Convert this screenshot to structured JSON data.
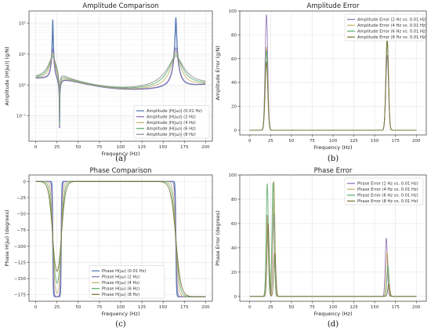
{
  "chart_data": [
    {
      "id": "a",
      "type": "line",
      "panel_label": "(a)",
      "title": "Amplitude Comparison",
      "xlabel": "Frequency (Hz)",
      "ylabel": "Amplitude |H(jω)| (g/N)",
      "yscale": "log",
      "xlim": [
        -8,
        208
      ],
      "ylim": [
        0.015,
        250
      ],
      "xticks": [
        0,
        25,
        50,
        75,
        100,
        125,
        150,
        175,
        200
      ],
      "yticks": [
        {
          "v": 0.1,
          "label": "10⁻¹"
        },
        {
          "v": 1,
          "label": "10⁰"
        },
        {
          "v": 10,
          "label": "10¹"
        },
        {
          "v": 100,
          "label": "10²"
        }
      ],
      "grid": true,
      "legend": "lower-right",
      "model": {
        "kind": "amplitude",
        "peaks": [
          20,
          165
        ],
        "antiresonance": 28
      },
      "series": [
        {
          "name": "Amplitude |H(jω)| (0.01 Hz)",
          "color": "#4c72b0",
          "resolution": 0.01
        },
        {
          "name": "Amplitude |H(jω)| (2 Hz)",
          "color": "#8c6bb1",
          "resolution": 2
        },
        {
          "name": "Amplitude |H(jω)| (4 Hz)",
          "color": "#c4ad66",
          "resolution": 4
        },
        {
          "name": "Amplitude |H(jω)| (6 Hz)",
          "color": "#55a868",
          "resolution": 6
        },
        {
          "name": "Amplitude |H(jω)| (8 Hz)",
          "color": "#8c8c8c",
          "resolution": 8
        }
      ]
    },
    {
      "id": "b",
      "type": "line",
      "panel_label": "(b)",
      "title": "Amplitude Error",
      "xlabel": "Frequency (Hz)",
      "ylabel": "Amplitude Error (g/N)",
      "yscale": "linear",
      "xlim": [
        -12,
        212
      ],
      "ylim": [
        -4,
        100
      ],
      "xticks": [
        0,
        25,
        50,
        75,
        100,
        125,
        150,
        175,
        200
      ],
      "yticks": [
        {
          "v": 0,
          "label": "0"
        },
        {
          "v": 20,
          "label": "20"
        },
        {
          "v": 40,
          "label": "40"
        },
        {
          "v": 60,
          "label": "60"
        },
        {
          "v": 80,
          "label": "80"
        },
        {
          "v": 100,
          "label": "100"
        }
      ],
      "grid": true,
      "legend": "upper-right",
      "series": [
        {
          "name": "Amplitude Error (2 Hz vs. 0.01 Hz)",
          "color": "#8c6bb1",
          "peaks": [
            {
              "x": 20,
              "y": 97
            },
            {
              "x": 165,
              "y": 63
            }
          ]
        },
        {
          "name": "Amplitude Error (4 Hz vs. 0.01 Hz)",
          "color": "#c4ad66",
          "peaks": [
            {
              "x": 20,
              "y": 70
            },
            {
              "x": 165,
              "y": 76
            }
          ]
        },
        {
          "name": "Amplitude Error (6 Hz vs. 0.01 Hz)",
          "color": "#55a868",
          "peaks": [
            {
              "x": 20,
              "y": 67
            },
            {
              "x": 165,
              "y": 74
            }
          ]
        },
        {
          "name": "Amplitude Error (8 Hz vs. 0.01 Hz)",
          "color": "#7a6a2e",
          "peaks": [
            {
              "x": 20,
              "y": 57
            },
            {
              "x": 165,
              "y": 78
            }
          ]
        }
      ]
    },
    {
      "id": "c",
      "type": "line",
      "panel_label": "(c)",
      "title": "Phase Comparison",
      "xlabel": "Frequency (Hz)",
      "ylabel": "Phase H(jω) (degrees)",
      "yscale": "linear",
      "xlim": [
        -8,
        208
      ],
      "ylim": [
        -185,
        10
      ],
      "xticks": [
        0,
        25,
        50,
        75,
        100,
        125,
        150,
        175,
        200
      ],
      "yticks": [
        {
          "v": 0,
          "label": "0"
        },
        {
          "v": -25,
          "label": "−25"
        },
        {
          "v": -50,
          "label": "−50"
        },
        {
          "v": -75,
          "label": "−75"
        },
        {
          "v": -100,
          "label": "−100"
        },
        {
          "v": -125,
          "label": "−125"
        },
        {
          "v": -150,
          "label": "−150"
        },
        {
          "v": -175,
          "label": "−175"
        }
      ],
      "grid": true,
      "legend": "lower-center",
      "model": {
        "kind": "phase",
        "drop1": 20,
        "rise1": 30,
        "drop2": 165
      },
      "series": [
        {
          "name": "Phase H(jω) (0.01 Hz)",
          "color": "#4c72b0",
          "resolution": 0.01
        },
        {
          "name": "Phase H(jω) (2 Hz)",
          "color": "#8c6bb1",
          "resolution": 2
        },
        {
          "name": "Phase H(jω) (4 Hz)",
          "color": "#c4ad66",
          "resolution": 4
        },
        {
          "name": "Phase H(jω) (6 Hz)",
          "color": "#55a868",
          "resolution": 6
        },
        {
          "name": "Phase H(jω) (8 Hz)",
          "color": "#7a6a2e",
          "resolution": 8
        }
      ]
    },
    {
      "id": "d",
      "type": "line",
      "panel_label": "(d)",
      "title": "Phase Error",
      "xlabel": "Frequency (Hz)",
      "ylabel": "Phase Error (degrees)",
      "yscale": "linear",
      "xlim": [
        -12,
        212
      ],
      "ylim": [
        -4,
        100
      ],
      "xticks": [
        0,
        25,
        50,
        75,
        100,
        125,
        150,
        175,
        200
      ],
      "yticks": [
        {
          "v": 0,
          "label": "0"
        },
        {
          "v": 20,
          "label": "20"
        },
        {
          "v": 40,
          "label": "40"
        },
        {
          "v": 60,
          "label": "60"
        },
        {
          "v": 80,
          "label": "80"
        },
        {
          "v": 100,
          "label": "100"
        }
      ],
      "grid": true,
      "legend": "upper-right",
      "series": [
        {
          "name": "Phase Error (2 Hz vs. 0.01 Hz)",
          "color": "#8c6bb1",
          "peaks": [
            {
              "x": 21,
              "y": 67
            },
            {
              "x": 29,
              "y": 69
            },
            {
              "x": 164,
              "y": 48
            }
          ]
        },
        {
          "name": "Phase Error (4 Hz vs. 0.01 Hz)",
          "color": "#c4ad66",
          "peaks": [
            {
              "x": 21,
              "y": 66
            },
            {
              "x": 29,
              "y": 95
            },
            {
              "x": 165,
              "y": 37
            }
          ]
        },
        {
          "name": "Phase Error (6 Hz vs. 0.01 Hz)",
          "color": "#55a868",
          "peaks": [
            {
              "x": 21,
              "y": 93
            },
            {
              "x": 28,
              "y": 94
            },
            {
              "x": 166,
              "y": 25
            }
          ]
        },
        {
          "name": "Phase Error (8 Hz vs. 0.01 Hz)",
          "color": "#7a6a2e",
          "peaks": [
            {
              "x": 22,
              "y": 60
            },
            {
              "x": 30,
              "y": 36
            },
            {
              "x": 167,
              "y": 10
            }
          ]
        }
      ]
    }
  ]
}
